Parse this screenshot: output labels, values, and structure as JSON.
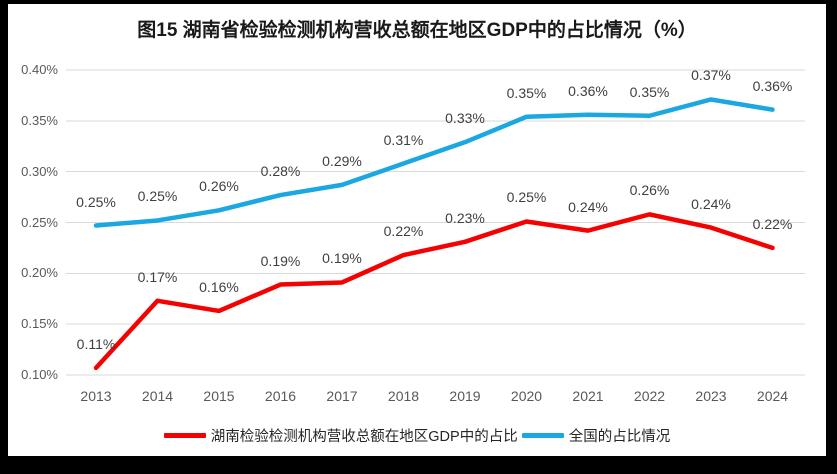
{
  "chart_data": {
    "type": "line",
    "title": "图15 湖南省检验检测机构营收总额在地区GDP中的占比情况（%）",
    "categories": [
      "2013",
      "2014",
      "2015",
      "2016",
      "2017",
      "2018",
      "2019",
      "2020",
      "2021",
      "2022",
      "2023",
      "2024"
    ],
    "series": [
      {
        "name": "湖南检验检测机构营收总额在地区GDP中的占比",
        "color": "#F40202",
        "labels": [
          "0.11%",
          "0.17%",
          "0.16%",
          "0.19%",
          "0.19%",
          "0.22%",
          "0.23%",
          "0.25%",
          "0.24%",
          "0.26%",
          "0.24%",
          "0.22%"
        ],
        "values": [
          0.11,
          0.17,
          0.16,
          0.19,
          0.19,
          0.22,
          0.23,
          0.25,
          0.24,
          0.26,
          0.24,
          0.22
        ],
        "plot_values": [
          0.107,
          0.173,
          0.163,
          0.189,
          0.191,
          0.218,
          0.231,
          0.251,
          0.242,
          0.258,
          0.245,
          0.225
        ]
      },
      {
        "name": "全国的占比情况",
        "color": "#1BA8E1",
        "labels": [
          "0.25%",
          "0.25%",
          "0.26%",
          "0.28%",
          "0.29%",
          "0.31%",
          "0.33%",
          "0.35%",
          "0.36%",
          "0.35%",
          "0.37%",
          "0.36%"
        ],
        "values": [
          0.25,
          0.25,
          0.26,
          0.28,
          0.29,
          0.31,
          0.33,
          0.35,
          0.36,
          0.35,
          0.37,
          0.36
        ],
        "plot_values": [
          0.247,
          0.252,
          0.262,
          0.277,
          0.287,
          0.308,
          0.329,
          0.354,
          0.356,
          0.355,
          0.371,
          0.361
        ]
      }
    ],
    "y_ticks": [
      "0.40%",
      "0.35%",
      "0.30%",
      "0.25%",
      "0.20%",
      "0.15%",
      "0.10%"
    ],
    "ylim": [
      0.1,
      0.4
    ],
    "xlabel": "",
    "ylabel": "",
    "unit": "%",
    "grid": true,
    "legend_position": "bottom"
  },
  "colors": {
    "frame": "#000000",
    "panel": "#FFFFFF",
    "gridline": "#D9D9D9",
    "axis_text": "#595959",
    "data_label_text": "#404040",
    "title_text": "#1A1A1A",
    "legend_text": "#262626",
    "series_hunan": "#F40202",
    "series_national": "#1BA8E1"
  }
}
